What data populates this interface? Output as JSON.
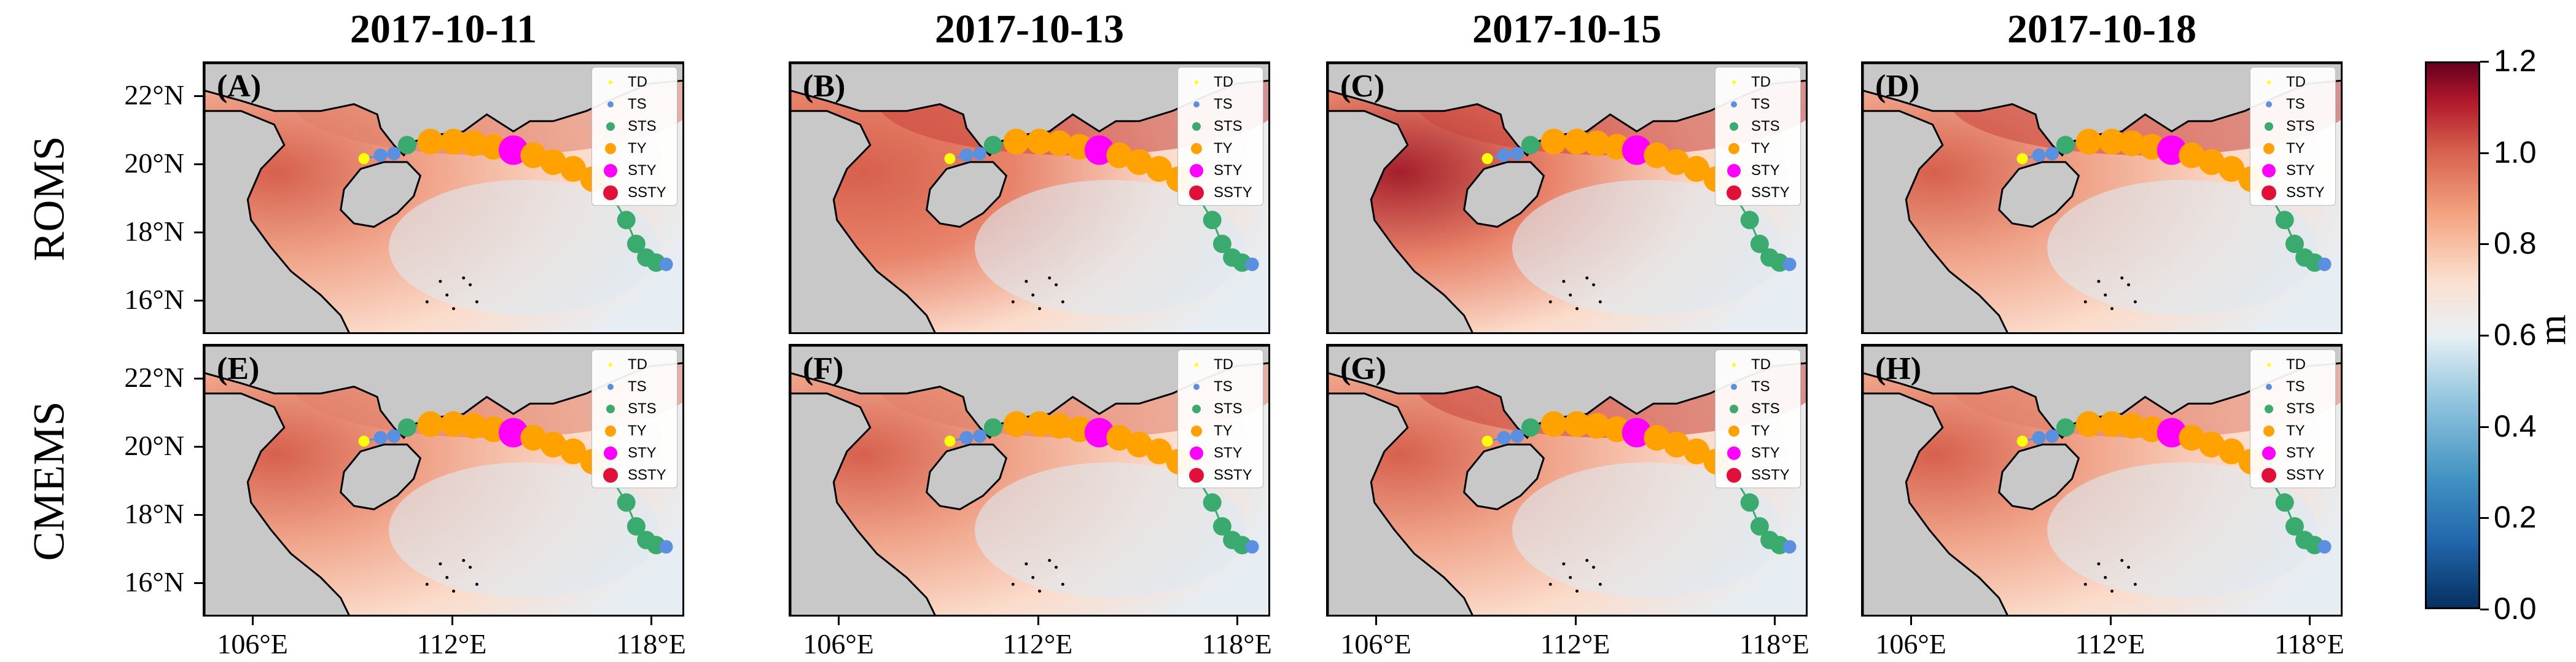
{
  "column_titles": [
    "2017-10-11",
    "2017-10-13",
    "2017-10-15",
    "2017-10-18"
  ],
  "row_labels": [
    "ROMS",
    "CMEMS"
  ],
  "panel_letters": [
    "(A)",
    "(B)",
    "(C)",
    "(D)",
    "(E)",
    "(F)",
    "(G)",
    "(H)"
  ],
  "lat_ticks": [
    "22°N",
    "20°N",
    "18°N",
    "16°N"
  ],
  "lon_ticks": [
    "106°E",
    "112°E",
    "118°E"
  ],
  "legend_categories": [
    "TD",
    "TS",
    "STS",
    "TY",
    "STY",
    "SSTY"
  ],
  "legend_colors": [
    "#ffff00",
    "#5b8fe0",
    "#3aaa6e",
    "#ffa200",
    "#ff00ff",
    "#e0103a"
  ],
  "colorbar": {
    "unit": "m",
    "ticks": [
      "0.0",
      "0.2",
      "0.4",
      "0.6",
      "0.8",
      "1.0",
      "1.2"
    ],
    "min": 0.0,
    "max": 1.2,
    "colors": [
      "#053061",
      "#2166ac",
      "#92c5de",
      "#f7f7f7",
      "#f4a582",
      "#b2182b",
      "#67001f"
    ]
  },
  "map_extent": {
    "lon_min": 104.5,
    "lon_max": 119.0,
    "lat_min": 15.0,
    "lat_max": 23.0
  },
  "track_lonlat": [
    [
      109.3,
      20.2
    ],
    [
      109.8,
      20.3
    ],
    [
      110.2,
      20.35
    ],
    [
      110.6,
      20.6
    ],
    [
      111.3,
      20.7
    ],
    [
      112.0,
      20.7
    ],
    [
      112.6,
      20.65
    ],
    [
      113.2,
      20.55
    ],
    [
      113.8,
      20.45
    ],
    [
      114.4,
      20.3
    ],
    [
      115.0,
      20.1
    ],
    [
      115.6,
      19.9
    ],
    [
      116.2,
      19.6
    ],
    [
      116.7,
      19.2
    ],
    [
      117.2,
      18.4
    ],
    [
      117.5,
      17.7
    ],
    [
      117.8,
      17.3
    ],
    [
      118.1,
      17.15
    ],
    [
      118.4,
      17.1
    ]
  ],
  "track_categories": [
    "TD",
    "TS",
    "TS",
    "STS",
    "TY",
    "TY",
    "TY",
    "TY",
    "STY",
    "TY",
    "TY",
    "TY",
    "TY",
    "STS",
    "STS",
    "STS",
    "STS",
    "STS",
    "TS"
  ],
  "panel_intensity": [
    0.8,
    1.0,
    1.1,
    0.9,
    0.75,
    0.85,
    0.9,
    0.8
  ]
}
